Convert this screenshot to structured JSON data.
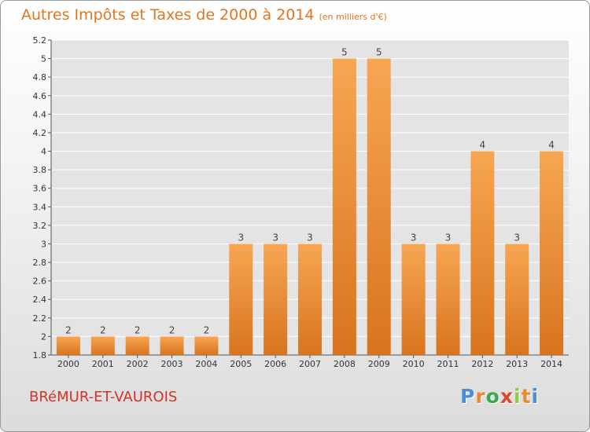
{
  "chart_data": {
    "type": "bar",
    "title": "Autres Impôts et Taxes de 2000 à 2014",
    "unit_note": "(en milliers d'€)",
    "categories": [
      "2000",
      "2001",
      "2002",
      "2003",
      "2004",
      "2005",
      "2006",
      "2007",
      "2008",
      "2009",
      "2010",
      "2011",
      "2012",
      "2013",
      "2014"
    ],
    "values": [
      2,
      2,
      2,
      2,
      2,
      3,
      3,
      3,
      5,
      5,
      3,
      3,
      4,
      3,
      4
    ],
    "data_labels": [
      "2",
      "2",
      "2",
      "2",
      "2",
      "3",
      "3",
      "3",
      "5",
      "5",
      "3",
      "3",
      "4",
      "3",
      "4"
    ],
    "ylim": [
      1.8,
      5.2
    ],
    "yticks": [
      1.8,
      2,
      2.2,
      2.4,
      2.6,
      2.8,
      3,
      3.2,
      3.4,
      3.6,
      3.8,
      4,
      4.2,
      4.4,
      4.6,
      4.8,
      5,
      5.2
    ],
    "ytick_labels": [
      "1.8",
      "2",
      "2.2",
      "2.4",
      "2.6",
      "2.8",
      "3",
      "3.2",
      "3.4",
      "3.6",
      "3.8",
      "4",
      "4.2",
      "4.4",
      "4.6",
      "4.8",
      "5",
      "5.2"
    ],
    "grid": true,
    "bar_color": "#f0922e",
    "title_color": "#e0761f"
  },
  "commune": "BRéMUR-ET-VAUROIS",
  "logo": {
    "letters": [
      "P",
      "r",
      "o",
      "x",
      "i",
      "t",
      "i"
    ],
    "colors": [
      "#4a8fd4",
      "#e98a2b",
      "#3aa84b",
      "#e2452f",
      "#9bc63f",
      "#e98a2b",
      "#4a8fd4"
    ]
  }
}
